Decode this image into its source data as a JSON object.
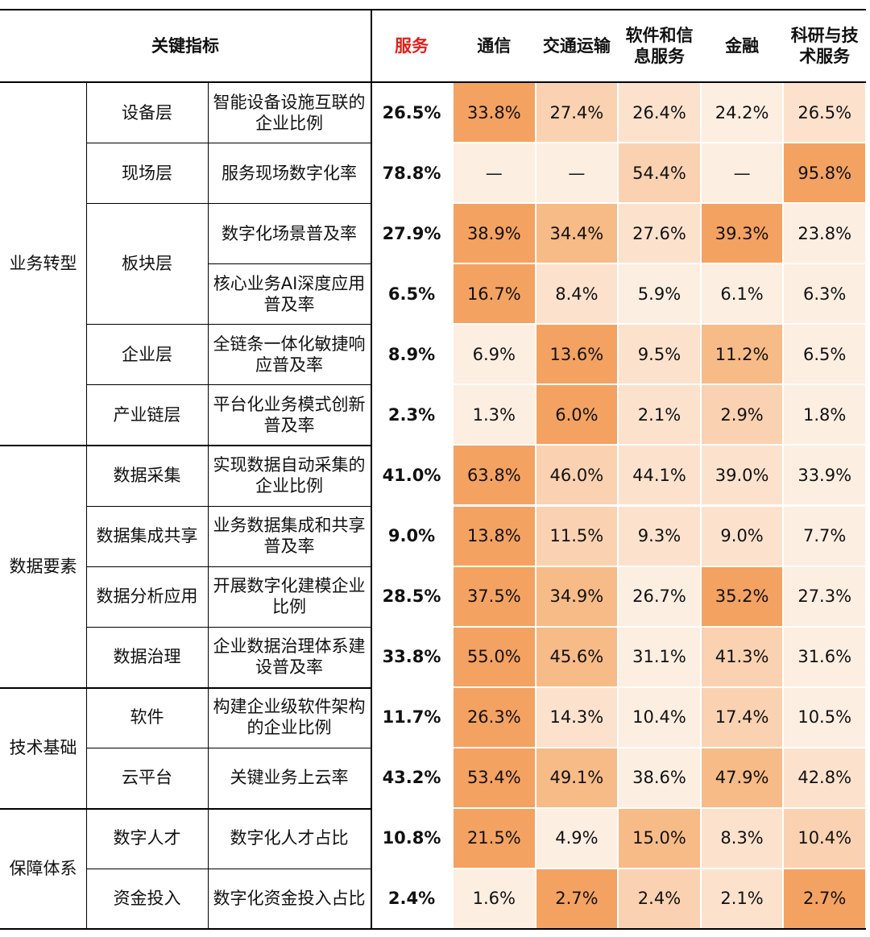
{
  "header": {
    "key_indicator": "关键指标",
    "columns": [
      "服务",
      "通信",
      "交通运输",
      "软件和信息服务",
      "金融",
      "科研与技术服务"
    ]
  },
  "groups": [
    {
      "name": "业务转型",
      "subs": [
        {
          "name": "设备层",
          "rows": [
            {
              "indicator": "智能设备设施互联的企业比例",
              "values": [
                "26.5%",
                "33.8%",
                "27.4%",
                "26.4%",
                "24.2%",
                "26.5%"
              ],
              "colors": [
                "#f4a261",
                "#fad2b1",
                "#fce2cd",
                "#fdeee2",
                "#fce2cd"
              ]
            }
          ]
        },
        {
          "name": "现场层",
          "rows": [
            {
              "indicator": "服务现场数字化率",
              "values": [
                "78.8%",
                "—",
                "—",
                "54.4%",
                "—",
                "95.8%"
              ],
              "colors": [
                "#fdeee2",
                "#fdeee2",
                "#fad2b1",
                "#fdeee2",
                "#f4a261"
              ]
            }
          ]
        },
        {
          "name": "板块层",
          "rows": [
            {
              "indicator": "数字化场景普及率",
              "values": [
                "27.9%",
                "38.9%",
                "34.4%",
                "27.6%",
                "39.3%",
                "23.8%"
              ],
              "colors": [
                "#f4a261",
                "#f7bb88",
                "#fce2cd",
                "#f4a261",
                "#fdeee2"
              ]
            },
            {
              "indicator": "核心业务AI深度应用普及率",
              "values": [
                "6.5%",
                "16.7%",
                "8.4%",
                "5.9%",
                "6.1%",
                "6.3%"
              ],
              "colors": [
                "#f4a261",
                "#fce2cd",
                "#fdeee2",
                "#fdeee2",
                "#fdeee2"
              ]
            }
          ]
        },
        {
          "name": "企业层",
          "rows": [
            {
              "indicator": "全链条一体化敏捷响应普及率",
              "values": [
                "8.9%",
                "6.9%",
                "13.6%",
                "9.5%",
                "11.2%",
                "6.5%"
              ],
              "colors": [
                "#fdeee2",
                "#f4a261",
                "#fce2cd",
                "#f7bb88",
                "#fdeee2"
              ]
            }
          ]
        },
        {
          "name": "产业链层",
          "rows": [
            {
              "indicator": "平台化业务模式创新普及率",
              "values": [
                "2.3%",
                "1.3%",
                "6.0%",
                "2.1%",
                "2.9%",
                "1.8%"
              ],
              "colors": [
                "#fdeee2",
                "#f4a261",
                "#fce2cd",
                "#fad2b1",
                "#fdeee2"
              ]
            }
          ]
        }
      ]
    },
    {
      "name": "数据要素",
      "subs": [
        {
          "name": "数据采集",
          "rows": [
            {
              "indicator": "实现数据自动采集的企业比例",
              "values": [
                "41.0%",
                "63.8%",
                "46.0%",
                "44.1%",
                "39.0%",
                "33.9%"
              ],
              "colors": [
                "#f4a261",
                "#fad2b1",
                "#fce2cd",
                "#fce2cd",
                "#fdeee2"
              ]
            }
          ]
        },
        {
          "name": "数据集成共享",
          "rows": [
            {
              "indicator": "业务数据集成和共享普及率",
              "values": [
                "9.0%",
                "13.8%",
                "11.5%",
                "9.3%",
                "9.0%",
                "7.7%"
              ],
              "colors": [
                "#f4a261",
                "#fad2b1",
                "#fce2cd",
                "#fce2cd",
                "#fdeee2"
              ]
            }
          ]
        },
        {
          "name": "数据分析应用",
          "rows": [
            {
              "indicator": "开展数字化建模企业比例",
              "values": [
                "28.5%",
                "37.5%",
                "34.9%",
                "26.7%",
                "35.2%",
                "27.3%"
              ],
              "colors": [
                "#f4a261",
                "#f7bb88",
                "#fdeee2",
                "#f4a261",
                "#fdeee2"
              ]
            }
          ]
        },
        {
          "name": "数据治理",
          "rows": [
            {
              "indicator": "企业数据治理体系建设普及率",
              "values": [
                "33.8%",
                "55.0%",
                "45.6%",
                "31.1%",
                "41.3%",
                "31.6%"
              ],
              "colors": [
                "#f4a261",
                "#f7bb88",
                "#fdeee2",
                "#fad2b1",
                "#fdeee2"
              ]
            }
          ]
        }
      ]
    },
    {
      "name": "技术基础",
      "subs": [
        {
          "name": "软件",
          "rows": [
            {
              "indicator": "构建企业级软件架构的企业比例",
              "values": [
                "11.7%",
                "26.3%",
                "14.3%",
                "10.4%",
                "17.4%",
                "10.5%"
              ],
              "colors": [
                "#f4a261",
                "#fce2cd",
                "#fdeee2",
                "#fad2b1",
                "#fdeee2"
              ]
            }
          ]
        },
        {
          "name": "云平台",
          "rows": [
            {
              "indicator": "关键业务上云率",
              "values": [
                "43.2%",
                "53.4%",
                "49.1%",
                "38.6%",
                "47.9%",
                "42.8%"
              ],
              "colors": [
                "#f4a261",
                "#f7bb88",
                "#fdeee2",
                "#f7bb88",
                "#fce2cd"
              ]
            }
          ]
        }
      ]
    },
    {
      "name": "保障体系",
      "subs": [
        {
          "name": "数字人才",
          "rows": [
            {
              "indicator": "数字化人才占比",
              "values": [
                "10.8%",
                "21.5%",
                "4.9%",
                "15.0%",
                "8.3%",
                "10.4%"
              ],
              "colors": [
                "#f4a261",
                "#fdeee2",
                "#f7bb88",
                "#fce2cd",
                "#fad2b1"
              ]
            }
          ]
        },
        {
          "name": "资金投入",
          "rows": [
            {
              "indicator": "数字化资金投入占比",
              "values": [
                "2.4%",
                "1.6%",
                "2.7%",
                "2.4%",
                "2.1%",
                "2.7%"
              ],
              "colors": [
                "#fdeee2",
                "#f4a261",
                "#fad2b1",
                "#fce2cd",
                "#f4a261"
              ]
            }
          ]
        }
      ]
    }
  ]
}
